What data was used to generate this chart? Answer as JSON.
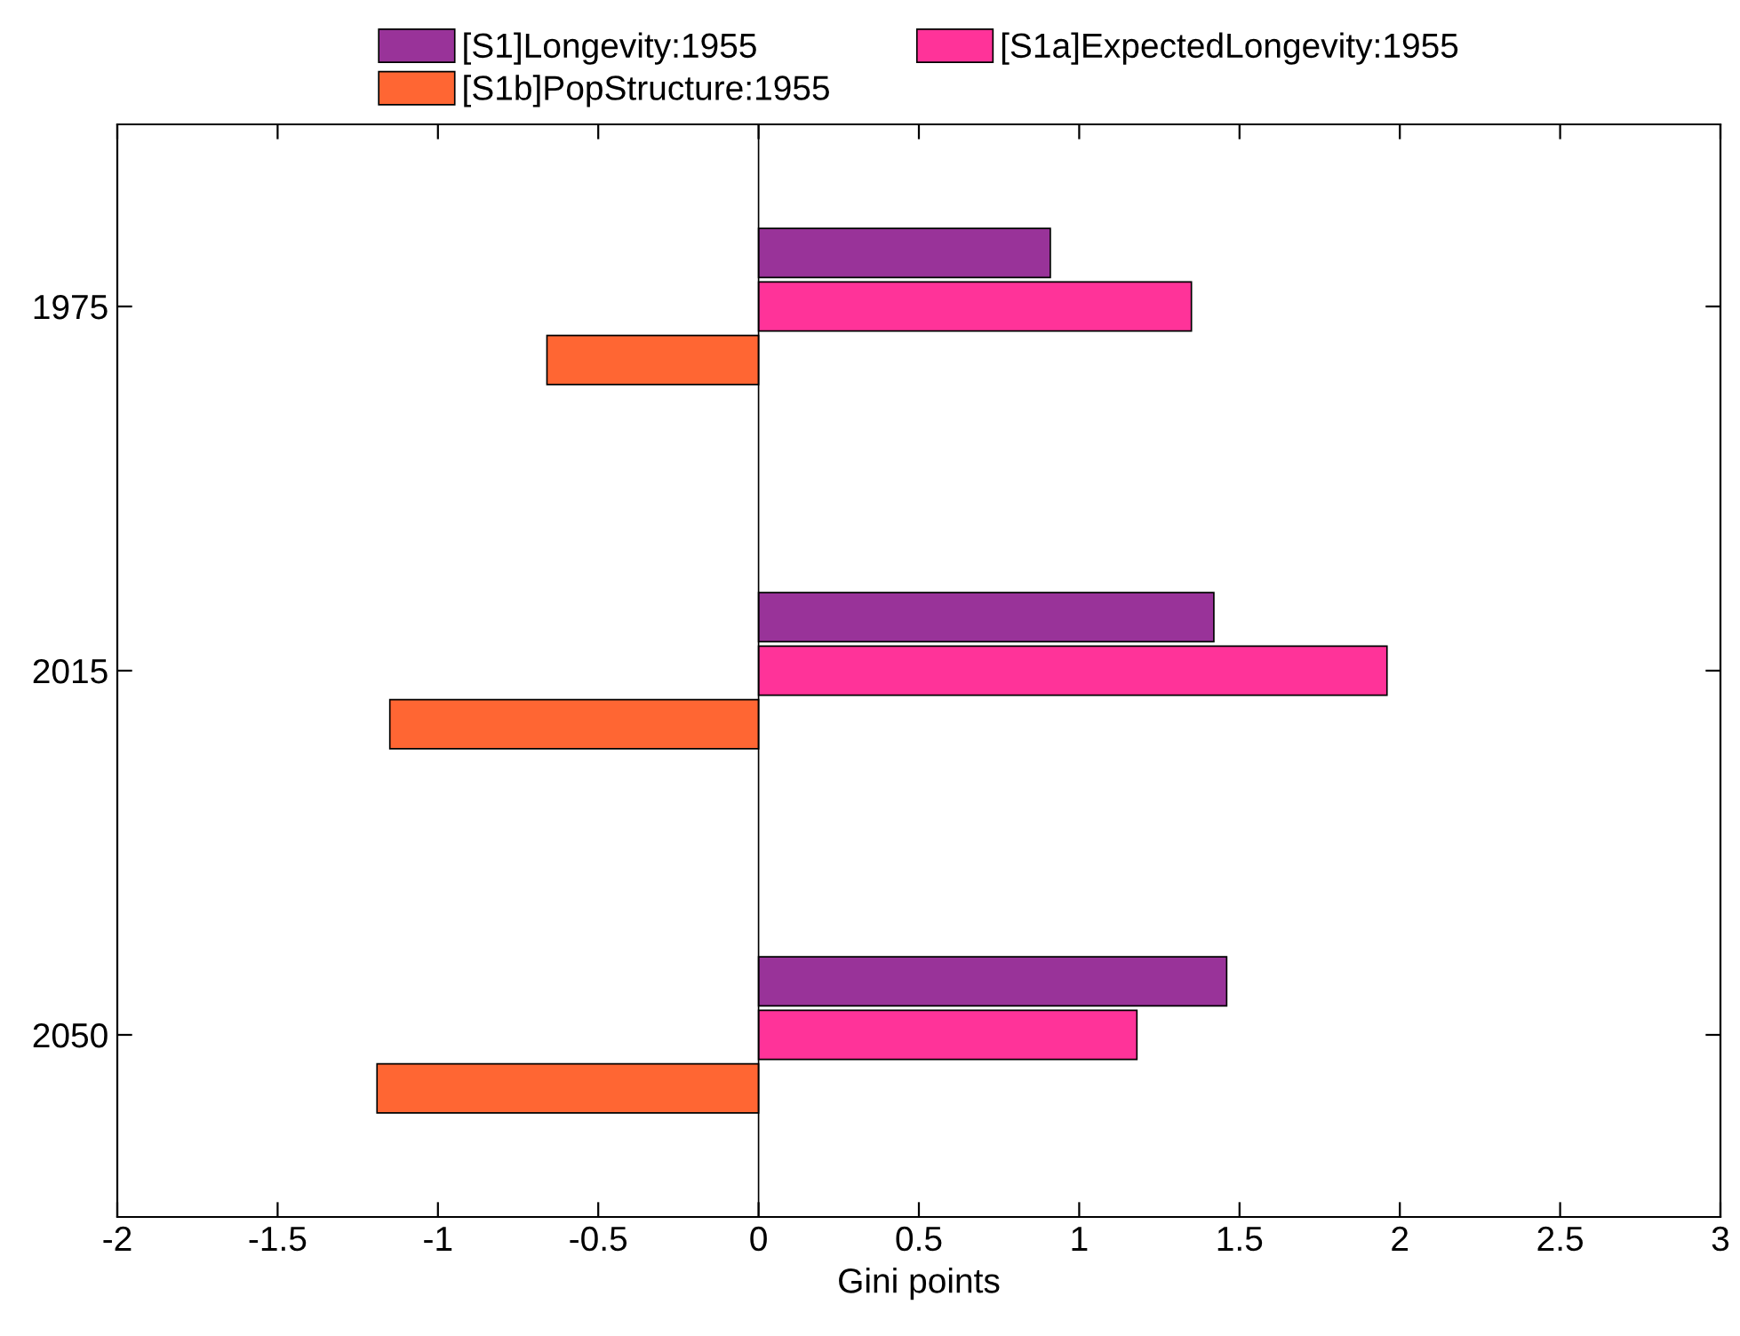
{
  "chart_data": {
    "type": "bar",
    "orientation": "horizontal",
    "xlabel": "Gini points",
    "categories": [
      "1975",
      "2015",
      "2050"
    ],
    "series": [
      {
        "name": "[S1]Longevity:1955",
        "color": "#993399",
        "values": [
          0.91,
          1.42,
          1.46
        ]
      },
      {
        "name": "[S1a]ExpectedLongevity:1955",
        "color": "#ff3399",
        "values": [
          1.35,
          1.96,
          1.18
        ]
      },
      {
        "name": "[S1b]PopStructure:1955",
        "color": "#ff6633",
        "values": [
          -0.66,
          -1.15,
          -1.19
        ]
      }
    ],
    "xlim": [
      -2,
      3
    ],
    "xticks": [
      -2,
      -1.5,
      -1,
      -0.5,
      0,
      0.5,
      1,
      1.5,
      2,
      2.5,
      3
    ],
    "legend": "top",
    "grid": false,
    "ref_lines": [
      {
        "axis": "x",
        "value": 0,
        "color": "#000000"
      }
    ]
  }
}
